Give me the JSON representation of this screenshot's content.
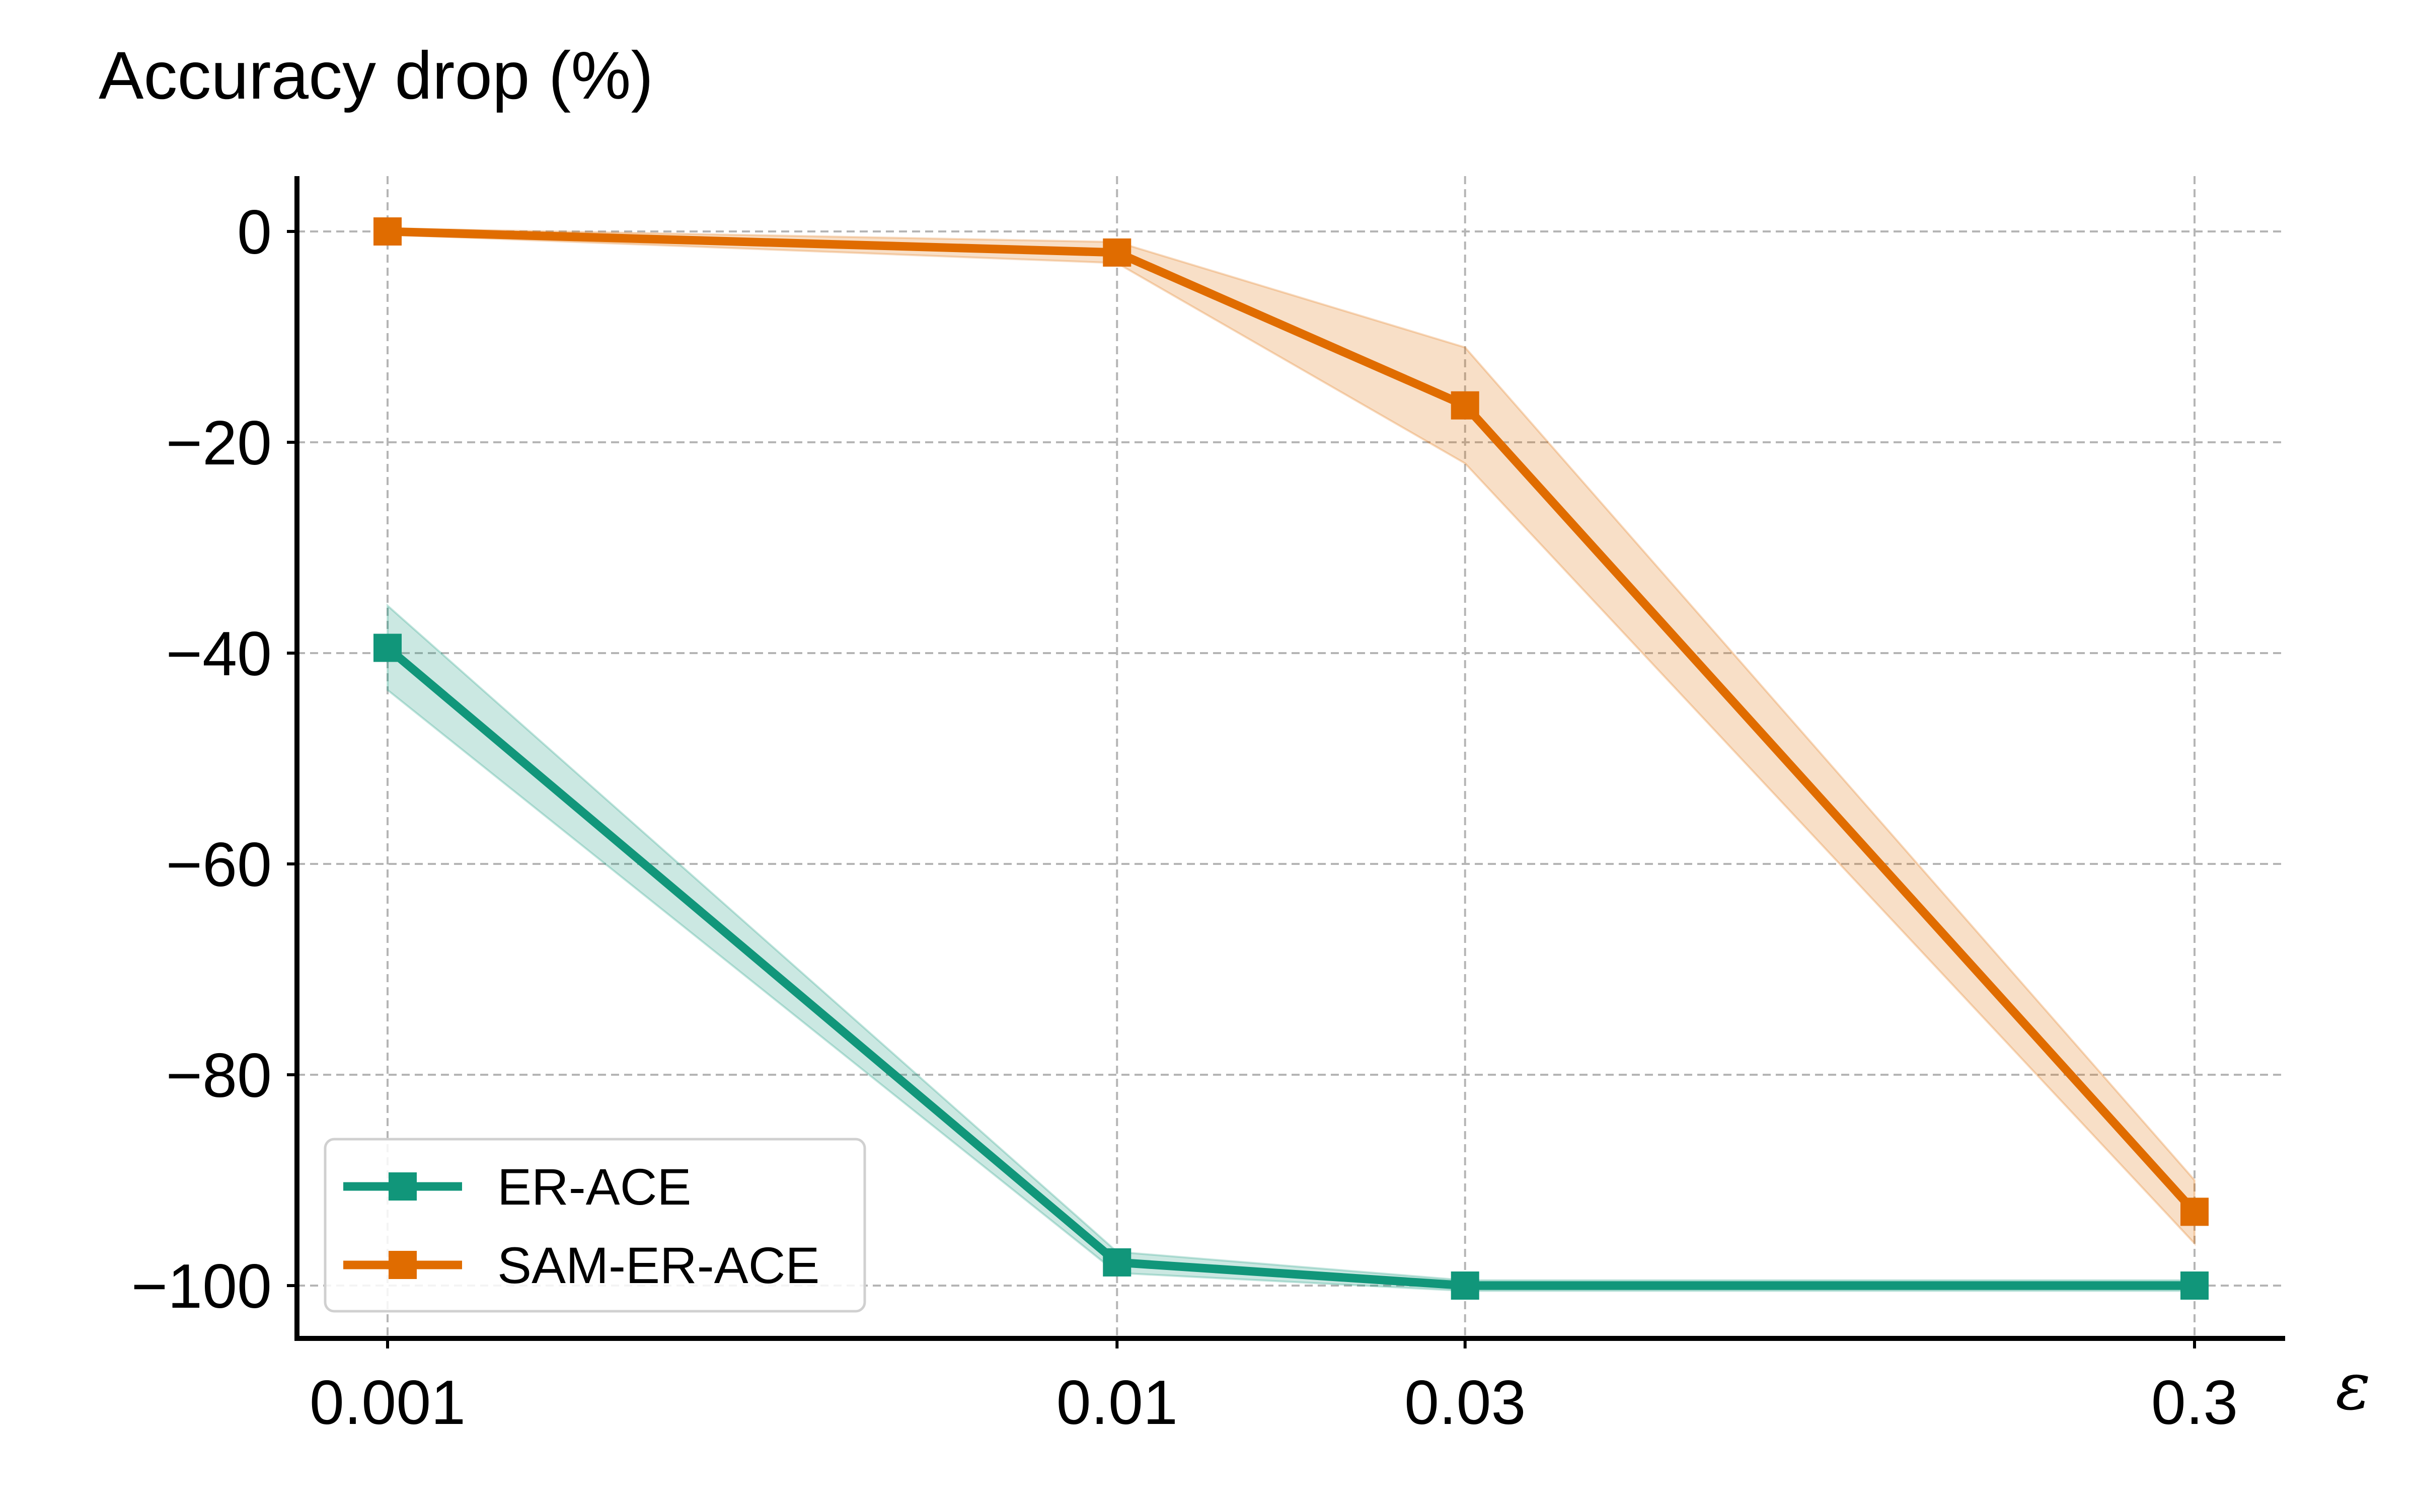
{
  "chart_data": {
    "type": "line",
    "ylabel": "Accuracy drop (%)",
    "xlabel": "ε",
    "x": [
      0.001,
      0.01,
      0.03,
      0.3
    ],
    "x_tick_labels": [
      "0.001",
      "0.01",
      "0.03",
      "0.3"
    ],
    "x_scale": "log",
    "y_ticks": [
      0,
      -20,
      -40,
      -60,
      -80,
      -100
    ],
    "y_tick_labels": [
      "0",
      "−20",
      "−40",
      "−60",
      "−80",
      "−100"
    ],
    "ylim": [
      -105,
      5.2
    ],
    "grid": true,
    "legend_position": "lower-left",
    "series": [
      {
        "name": "ER-ACE",
        "color": "#11967a",
        "marker": "square",
        "values": [
          -39.5,
          -97.8,
          -100,
          -100
        ],
        "lower": [
          -43.5,
          -98.8,
          -100.5,
          -100.5
        ],
        "upper": [
          -35.5,
          -96.8,
          -99.5,
          -99.5
        ]
      },
      {
        "name": "SAM-ER-ACE",
        "color": "#e06c00",
        "marker": "square",
        "values": [
          0,
          -2,
          -16.5,
          -93
        ],
        "lower": [
          -0.3,
          -3,
          -22,
          -96
        ],
        "upper": [
          0.3,
          -1,
          -11,
          -90
        ]
      }
    ]
  }
}
